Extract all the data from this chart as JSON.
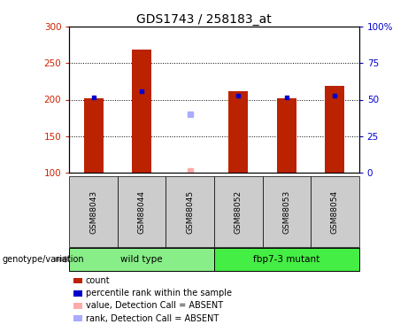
{
  "title": "GDS1743 / 258183_at",
  "samples": [
    "GSM88043",
    "GSM88044",
    "GSM88045",
    "GSM88052",
    "GSM88053",
    "GSM88054"
  ],
  "bar_values": [
    202,
    268,
    null,
    212,
    202,
    219
  ],
  "bar_color": "#bb2200",
  "blue_dot_values": [
    203,
    212,
    null,
    205,
    203,
    205
  ],
  "blue_dot_color": "#0000cc",
  "absent_value_values": [
    null,
    null,
    103,
    null,
    null,
    null
  ],
  "absent_value_color": "#ffaaaa",
  "absent_rank_values": [
    null,
    null,
    180,
    null,
    null,
    null
  ],
  "absent_rank_color": "#aaaaff",
  "ylim": [
    100,
    300
  ],
  "y_left_ticks": [
    100,
    150,
    200,
    250,
    300
  ],
  "y_right_ticks": [
    0,
    25,
    50,
    75,
    100
  ],
  "y_right_tick_positions": [
    100,
    150,
    200,
    250,
    300
  ],
  "ylabel_left_color": "#cc2200",
  "ylabel_right_color": "#0000cc",
  "groups": [
    {
      "label": "wild type",
      "samples": [
        0,
        1,
        2
      ],
      "color": "#88ee88"
    },
    {
      "label": "fbp7-3 mutant",
      "samples": [
        3,
        4,
        5
      ],
      "color": "#44ee44"
    }
  ],
  "group_row_label": "genotype/variation",
  "legend_items": [
    {
      "label": "count",
      "color": "#bb2200"
    },
    {
      "label": "percentile rank within the sample",
      "color": "#0000cc"
    },
    {
      "label": "value, Detection Call = ABSENT",
      "color": "#ffaaaa"
    },
    {
      "label": "rank, Detection Call = ABSENT",
      "color": "#aaaaff"
    }
  ],
  "bar_width": 0.4,
  "sample_area_bg": "#cccccc",
  "grid_color": "black",
  "grid_linestyle": "dotted"
}
